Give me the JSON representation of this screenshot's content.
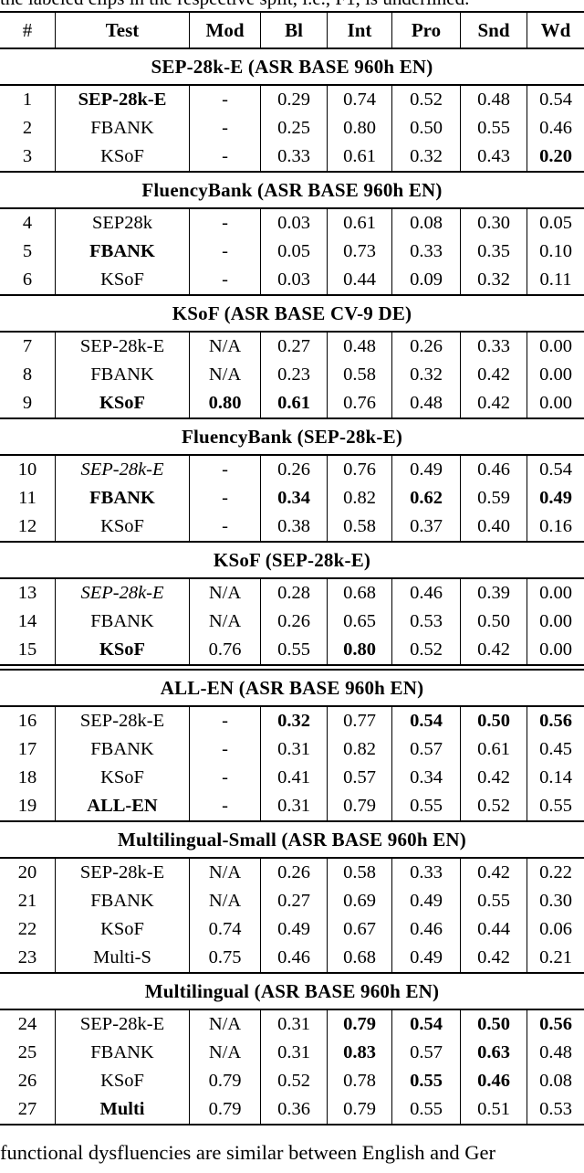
{
  "captions": {
    "top_fragment": "the labeled clips in the respective split, i.e., F1, is underlined.",
    "bottom_fragment": "functional dysfluencies are similar between English and Ger"
  },
  "table": {
    "columns": [
      "#",
      "Test",
      "Mod",
      "Bl",
      "Int",
      "Pro",
      "Snd",
      "Wd"
    ],
    "sections": [
      {
        "title": "SEP-28k-E (ASR BASE 960h EN)",
        "rows": [
          {
            "num": "1",
            "test": "SEP-28k-E",
            "test_style": "bold",
            "mod": "-",
            "mod_bold": false,
            "values": [
              "0.29",
              "0.74",
              "0.52",
              "0.48",
              "0.54"
            ],
            "bold": [
              false,
              false,
              false,
              false,
              false
            ]
          },
          {
            "num": "2",
            "test": "FBANK",
            "test_style": "normal",
            "mod": "-",
            "mod_bold": false,
            "values": [
              "0.25",
              "0.80",
              "0.50",
              "0.55",
              "0.46"
            ],
            "bold": [
              false,
              false,
              false,
              false,
              false
            ]
          },
          {
            "num": "3",
            "test": "KSoF",
            "test_style": "normal",
            "mod": "-",
            "mod_bold": false,
            "values": [
              "0.33",
              "0.61",
              "0.32",
              "0.43",
              "0.20"
            ],
            "bold": [
              false,
              false,
              false,
              false,
              true
            ]
          }
        ]
      },
      {
        "title": "FluencyBank (ASR BASE 960h EN)",
        "rows": [
          {
            "num": "4",
            "test": "SEP28k",
            "test_style": "normal",
            "mod": "-",
            "mod_bold": false,
            "values": [
              "0.03",
              "0.61",
              "0.08",
              "0.30",
              "0.05"
            ],
            "bold": [
              false,
              false,
              false,
              false,
              false
            ]
          },
          {
            "num": "5",
            "test": "FBANK",
            "test_style": "bold",
            "mod": "-",
            "mod_bold": false,
            "values": [
              "0.05",
              "0.73",
              "0.33",
              "0.35",
              "0.10"
            ],
            "bold": [
              false,
              false,
              false,
              false,
              false
            ]
          },
          {
            "num": "6",
            "test": "KSoF",
            "test_style": "normal",
            "mod": "-",
            "mod_bold": false,
            "values": [
              "0.03",
              "0.44",
              "0.09",
              "0.32",
              "0.11"
            ],
            "bold": [
              false,
              false,
              false,
              false,
              false
            ]
          }
        ]
      },
      {
        "title": "KSoF (ASR BASE CV-9 DE)",
        "rows": [
          {
            "num": "7",
            "test": "SEP-28k-E",
            "test_style": "normal",
            "mod": "N/A",
            "mod_bold": false,
            "values": [
              "0.27",
              "0.48",
              "0.26",
              "0.33",
              "0.00"
            ],
            "bold": [
              false,
              false,
              false,
              false,
              false
            ]
          },
          {
            "num": "8",
            "test": "FBANK",
            "test_style": "normal",
            "mod": "N/A",
            "mod_bold": false,
            "values": [
              "0.23",
              "0.58",
              "0.32",
              "0.42",
              "0.00"
            ],
            "bold": [
              false,
              false,
              false,
              false,
              false
            ]
          },
          {
            "num": "9",
            "test": "KSoF",
            "test_style": "bold",
            "mod": "0.80",
            "mod_bold": true,
            "values": [
              "0.61",
              "0.76",
              "0.48",
              "0.42",
              "0.00"
            ],
            "bold": [
              true,
              false,
              false,
              false,
              false
            ]
          }
        ]
      },
      {
        "title": "FluencyBank (SEP-28k-E)",
        "rows": [
          {
            "num": "10",
            "test": "SEP-28k-E",
            "test_style": "italic",
            "mod": "-",
            "mod_bold": false,
            "values": [
              "0.26",
              "0.76",
              "0.49",
              "0.46",
              "0.54"
            ],
            "bold": [
              false,
              false,
              false,
              false,
              false
            ]
          },
          {
            "num": "11",
            "test": "FBANK",
            "test_style": "bold",
            "mod": "-",
            "mod_bold": false,
            "values": [
              "0.34",
              "0.82",
              "0.62",
              "0.59",
              "0.49"
            ],
            "bold": [
              true,
              false,
              true,
              false,
              true
            ]
          },
          {
            "num": "12",
            "test": "KSoF",
            "test_style": "normal",
            "mod": "-",
            "mod_bold": false,
            "values": [
              "0.38",
              "0.58",
              "0.37",
              "0.40",
              "0.16"
            ],
            "bold": [
              false,
              false,
              false,
              false,
              false
            ]
          }
        ]
      },
      {
        "title": "KSoF (SEP-28k-E)",
        "rows": [
          {
            "num": "13",
            "test": "SEP-28k-E",
            "test_style": "italic",
            "mod": "N/A",
            "mod_bold": false,
            "values": [
              "0.28",
              "0.68",
              "0.46",
              "0.39",
              "0.00"
            ],
            "bold": [
              false,
              false,
              false,
              false,
              false
            ]
          },
          {
            "num": "14",
            "test": "FBANK",
            "test_style": "normal",
            "mod": "N/A",
            "mod_bold": false,
            "values": [
              "0.26",
              "0.65",
              "0.53",
              "0.50",
              "0.00"
            ],
            "bold": [
              false,
              false,
              false,
              false,
              false
            ]
          },
          {
            "num": "15",
            "test": "KSoF",
            "test_style": "bold",
            "mod": "0.76",
            "mod_bold": false,
            "values": [
              "0.55",
              "0.80",
              "0.52",
              "0.42",
              "0.00"
            ],
            "bold": [
              false,
              true,
              false,
              false,
              false
            ]
          }
        ]
      },
      {
        "title": "ALL-EN (ASR BASE 960h EN)",
        "divider_before": "double",
        "rows": [
          {
            "num": "16",
            "test": "SEP-28k-E",
            "test_style": "normal",
            "mod": "-",
            "mod_bold": false,
            "values": [
              "0.32",
              "0.77",
              "0.54",
              "0.50",
              "0.56"
            ],
            "bold": [
              true,
              false,
              true,
              true,
              true
            ]
          },
          {
            "num": "17",
            "test": "FBANK",
            "test_style": "normal",
            "mod": "-",
            "mod_bold": false,
            "values": [
              "0.31",
              "0.82",
              "0.57",
              "0.61",
              "0.45"
            ],
            "bold": [
              false,
              false,
              false,
              false,
              false
            ]
          },
          {
            "num": "18",
            "test": "KSoF",
            "test_style": "normal",
            "mod": "-",
            "mod_bold": false,
            "values": [
              "0.41",
              "0.57",
              "0.34",
              "0.42",
              "0.14"
            ],
            "bold": [
              false,
              false,
              false,
              false,
              false
            ]
          },
          {
            "num": "19",
            "test": "ALL-EN",
            "test_style": "bold",
            "mod": "-",
            "mod_bold": false,
            "values": [
              "0.31",
              "0.79",
              "0.55",
              "0.52",
              "0.55"
            ],
            "bold": [
              false,
              false,
              false,
              false,
              false
            ]
          }
        ]
      },
      {
        "title": "Multilingual-Small (ASR BASE 960h EN)",
        "rows": [
          {
            "num": "20",
            "test": "SEP-28k-E",
            "test_style": "normal",
            "mod": "N/A",
            "mod_bold": false,
            "values": [
              "0.26",
              "0.58",
              "0.33",
              "0.42",
              "0.22"
            ],
            "bold": [
              false,
              false,
              false,
              false,
              false
            ]
          },
          {
            "num": "21",
            "test": "FBANK",
            "test_style": "normal",
            "mod": "N/A",
            "mod_bold": false,
            "values": [
              "0.27",
              "0.69",
              "0.49",
              "0.55",
              "0.30"
            ],
            "bold": [
              false,
              false,
              false,
              false,
              false
            ]
          },
          {
            "num": "22",
            "test": "KSoF",
            "test_style": "normal",
            "mod": "0.74",
            "mod_bold": false,
            "values": [
              "0.49",
              "0.67",
              "0.46",
              "0.44",
              "0.06"
            ],
            "bold": [
              false,
              false,
              false,
              false,
              false
            ]
          },
          {
            "num": "23",
            "test": "Multi-S",
            "test_style": "normal",
            "mod": "0.75",
            "mod_bold": false,
            "values": [
              "0.46",
              "0.68",
              "0.49",
              "0.42",
              "0.21"
            ],
            "bold": [
              false,
              false,
              false,
              false,
              false
            ]
          }
        ]
      },
      {
        "title": "Multilingual (ASR BASE 960h EN)",
        "rows": [
          {
            "num": "24",
            "test": "SEP-28k-E",
            "test_style": "normal",
            "mod": "N/A",
            "mod_bold": false,
            "values": [
              "0.31",
              "0.79",
              "0.54",
              "0.50",
              "0.56"
            ],
            "bold": [
              false,
              true,
              true,
              true,
              true
            ]
          },
          {
            "num": "25",
            "test": "FBANK",
            "test_style": "normal",
            "mod": "N/A",
            "mod_bold": false,
            "values": [
              "0.31",
              "0.83",
              "0.57",
              "0.63",
              "0.48"
            ],
            "bold": [
              false,
              true,
              false,
              true,
              false
            ]
          },
          {
            "num": "26",
            "test": "KSoF",
            "test_style": "normal",
            "mod": "0.79",
            "mod_bold": false,
            "values": [
              "0.52",
              "0.78",
              "0.55",
              "0.46",
              "0.08"
            ],
            "bold": [
              false,
              false,
              true,
              true,
              false
            ]
          },
          {
            "num": "27",
            "test": "Multi",
            "test_style": "bold",
            "mod": "0.79",
            "mod_bold": false,
            "values": [
              "0.36",
              "0.79",
              "0.55",
              "0.51",
              "0.53"
            ],
            "bold": [
              false,
              false,
              false,
              false,
              false
            ]
          }
        ]
      }
    ]
  }
}
